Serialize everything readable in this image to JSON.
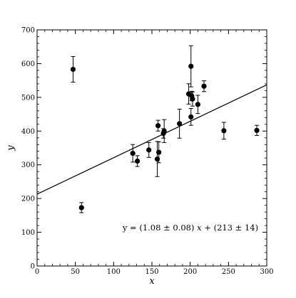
{
  "chart_data": {
    "type": "scatter",
    "xlabel": "x",
    "ylabel": "y",
    "xlim": [
      0,
      300
    ],
    "ylim": [
      0,
      700
    ],
    "x_ticks": [
      0,
      50,
      100,
      150,
      200,
      250,
      300
    ],
    "y_ticks": [
      0,
      100,
      200,
      300,
      400,
      500,
      600,
      700
    ],
    "x_minor_step": 10,
    "y_minor_step": 20,
    "grid": false,
    "points": [
      {
        "x": 201,
        "y": 592,
        "err": 61
      },
      {
        "x": 244,
        "y": 401,
        "err": 25
      },
      {
        "x": 47,
        "y": 583,
        "err": 38
      },
      {
        "x": 287,
        "y": 402,
        "err": 15
      },
      {
        "x": 203,
        "y": 495,
        "err": 21
      },
      {
        "x": 58,
        "y": 173,
        "err": 15
      },
      {
        "x": 210,
        "y": 479,
        "err": 27
      },
      {
        "x": 202,
        "y": 504,
        "err": 14
      },
      {
        "x": 198,
        "y": 510,
        "err": 30
      },
      {
        "x": 158,
        "y": 416,
        "err": 16
      },
      {
        "x": 165,
        "y": 393,
        "err": 14
      },
      {
        "x": 201,
        "y": 442,
        "err": 25
      },
      {
        "x": 157,
        "y": 317,
        "err": 52
      },
      {
        "x": 131,
        "y": 311,
        "err": 16
      },
      {
        "x": 166,
        "y": 400,
        "err": 34
      },
      {
        "x": 159,
        "y": 337,
        "err": 31
      },
      {
        "x": 125,
        "y": 334,
        "err": 26
      },
      {
        "x": 218,
        "y": 533,
        "err": 16
      },
      {
        "x": 146,
        "y": 344,
        "err": 22
      },
      {
        "x": 186,
        "y": 422,
        "err": 43
      }
    ],
    "fit": {
      "slope": 1.08,
      "intercept": 213
    },
    "annotation": {
      "prefix": "y = (1.08 ± 0.08) ",
      "var": "x",
      "suffix": " + (213 ± 14)"
    }
  }
}
